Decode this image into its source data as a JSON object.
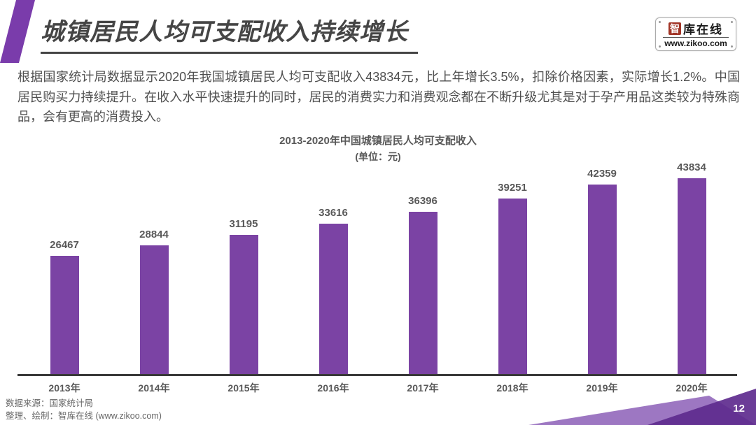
{
  "header": {
    "title": "城镇居民人均可支配收入持续增长"
  },
  "logo": {
    "symbol": "智",
    "name": "库在线",
    "url": "www.zikoo.com"
  },
  "intro_paragraph": "根据国家统计局数据显示2020年我国城镇居民人均可支配收入43834元，比上年增长3.5%，扣除价格因素，实际增长1.2%。中国居民购买力持续提升。在收入水平快速提升的同时，居民的消费实力和消费观念都在不断升级尤其是对于孕产用品这类较为特殊商品，会有更高的消费投入。",
  "chart_data": {
    "type": "bar",
    "title": "2013-2020年中国城镇居民人均可支配收入",
    "subtitle": "(单位：元)",
    "categories": [
      "2013年",
      "2014年",
      "2015年",
      "2016年",
      "2017年",
      "2018年",
      "2019年",
      "2020年"
    ],
    "values": [
      26467,
      28844,
      31195,
      33616,
      36396,
      39251,
      42359,
      43834
    ],
    "ylabel": "元",
    "ylim": [
      0,
      43834
    ],
    "bar_color": "#7b43a4",
    "grid": false,
    "legend": "none",
    "data_labels": true
  },
  "footer": {
    "source_line1": "数据来源：国家统计局",
    "source_line2": "整理、绘制：智库在线 (www.zikoo.com)",
    "page_number": "12"
  },
  "colors": {
    "accent": "#7a3cab",
    "bar": "#7b43a4",
    "corner_light": "#9d77c2",
    "corner_dark": "#5e2b8e",
    "logo_red": "#a23527"
  }
}
